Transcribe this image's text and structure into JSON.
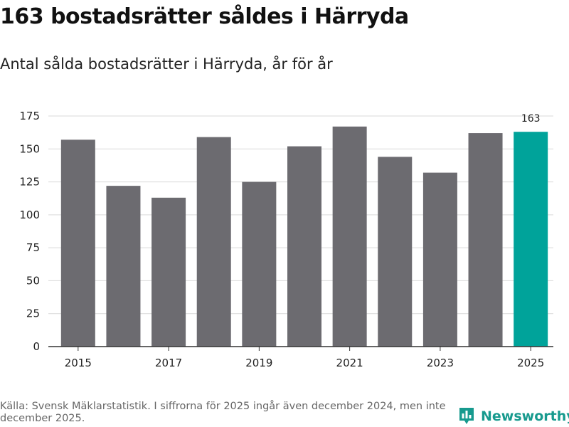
{
  "header": {
    "title": "163 bostadsrätter såldes i Härryda",
    "subtitle": "Antal sålda bostadsrätter i Härryda, år för år"
  },
  "chart_data": {
    "type": "bar",
    "title": "163 bostadsrätter såldes i Härryda",
    "subtitle": "Antal sålda bostadsrätter i Härryda, år för år",
    "xlabel": "",
    "ylabel": "",
    "categories": [
      "2015",
      "2016",
      "2017",
      "2018",
      "2019",
      "2020",
      "2021",
      "2022",
      "2023",
      "2024",
      "2025"
    ],
    "values": [
      157,
      122,
      113,
      159,
      125,
      152,
      167,
      144,
      132,
      162,
      163
    ],
    "x_tick_labels": [
      "2015",
      "2017",
      "2019",
      "2021",
      "2023",
      "2025"
    ],
    "y_ticks": [
      0,
      25,
      50,
      75,
      100,
      125,
      150,
      175
    ],
    "ylim": [
      0,
      175
    ],
    "grid": true,
    "bar_color": "#6c6b70",
    "highlight_color": "#00a39a",
    "highlight_category": "2025",
    "annotations": [
      {
        "category": "2025",
        "text": "163"
      }
    ]
  },
  "footer": {
    "source": "Källa: Svensk Mäklarstatistik. I siffrorna för 2025 ingår även december 2024, men inte december 2025."
  },
  "brand": {
    "name": "Newsworthy",
    "icon": "newsworthy-logo-icon",
    "color": "#179a8e"
  }
}
